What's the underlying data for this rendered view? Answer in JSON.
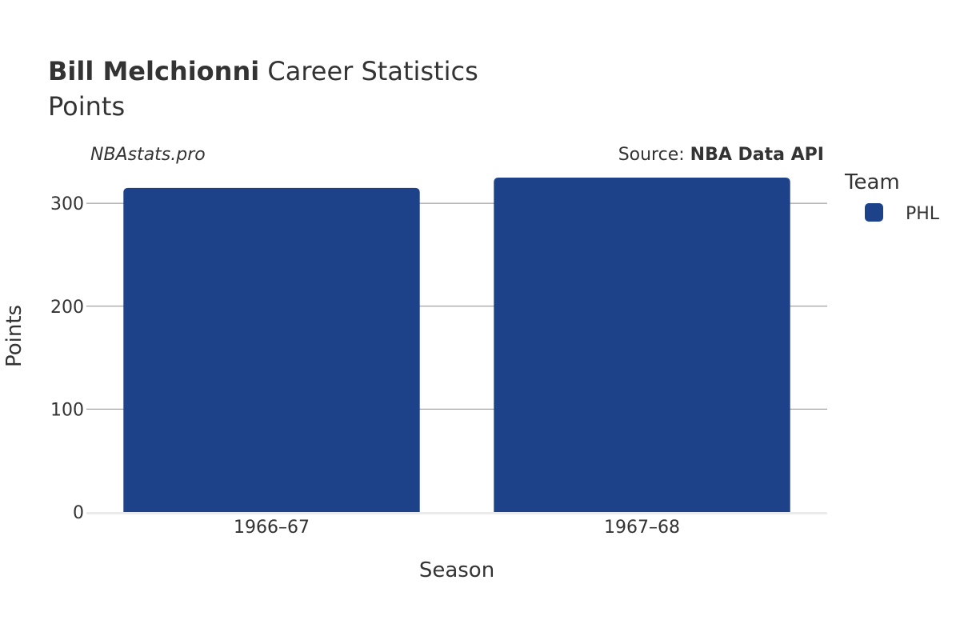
{
  "header": {
    "player_name": "Bill Melchionni",
    "title_suffix": " Career Statistics",
    "subtitle": "Points"
  },
  "watermark": "NBAstats.pro",
  "source": {
    "prefix": "Source: ",
    "name": "NBA Data API"
  },
  "legend": {
    "title": "Team",
    "items": [
      {
        "label": "PHL",
        "color": "#1d428a"
      }
    ]
  },
  "chart_data": {
    "type": "bar",
    "title": "Bill Melchionni Career Statistics",
    "subtitle": "Points",
    "xlabel": "Season",
    "ylabel": "Points",
    "categories": [
      "1966–67",
      "1967–68"
    ],
    "series": [
      {
        "name": "PHL",
        "color": "#1d428a",
        "values": [
          315,
          325
        ]
      }
    ],
    "ylim": [
      0,
      325
    ],
    "yticks": [
      0,
      100,
      200,
      300
    ],
    "grid": true,
    "legend_position": "right"
  }
}
